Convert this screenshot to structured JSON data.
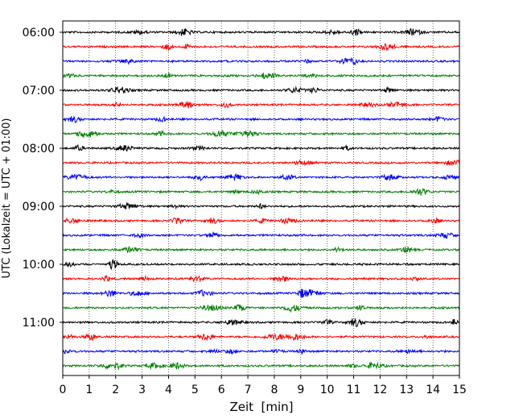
{
  "chart_data": {
    "type": "line",
    "title": "",
    "xlabel": "Zeit  [min]",
    "ylabel": "UTC (Lokalzeit = UTC + 01:00)",
    "xlim": [
      0,
      15
    ],
    "x_ticks": [
      "0",
      "1",
      "2",
      "3",
      "4",
      "5",
      "6",
      "7",
      "8",
      "9",
      "10",
      "11",
      "12",
      "13",
      "14",
      "15"
    ],
    "y_ticks": [
      "06:00",
      "07:00",
      "08:00",
      "09:00",
      "10:00",
      "11:00"
    ],
    "grid": "vertical dotted lines at every minute",
    "traces": {
      "count": 24,
      "start": "06:00",
      "interval_minutes": 15,
      "color_cycle": [
        "#000000",
        "#ff0000",
        "#0000ff",
        "#008000"
      ]
    }
  }
}
